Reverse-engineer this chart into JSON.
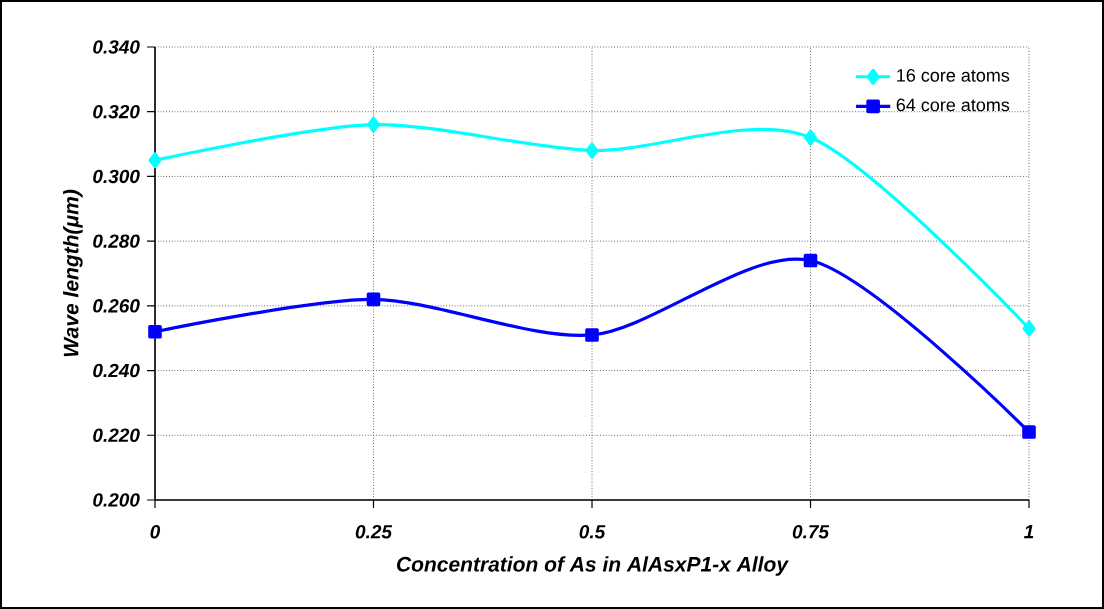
{
  "chart_data": {
    "type": "line",
    "xlabel": "Concentration of As in AlAsxP1-x Alloy",
    "ylabel": "Wave length(μm)",
    "x": [
      0,
      0.25,
      0.5,
      0.75,
      1
    ],
    "series": [
      {
        "name": "16 core atoms",
        "color": "#00ffff",
        "marker": "diamond",
        "values": [
          0.305,
          0.316,
          0.308,
          0.312,
          0.253
        ]
      },
      {
        "name": "64 core atoms",
        "color": "#0000ff",
        "marker": "square",
        "values": [
          0.252,
          0.262,
          0.251,
          0.274,
          0.221
        ]
      }
    ],
    "xlim": [
      0,
      1
    ],
    "xticks": [
      0,
      0.25,
      0.5,
      0.75,
      1
    ],
    "ylim": [
      0.2,
      0.34
    ],
    "yticks": [
      {
        "value": 0.2,
        "label": "0.200"
      },
      {
        "value": 0.22,
        "label": "0.220"
      },
      {
        "value": 0.24,
        "label": "0.240"
      },
      {
        "value": 0.26,
        "label": "0.260"
      },
      {
        "value": 0.28,
        "label": "0.280"
      },
      {
        "value": 0.3,
        "label": "0.300"
      },
      {
        "value": 0.32,
        "label": "0.320"
      },
      {
        "value": 0.34,
        "label": "0.340"
      }
    ],
    "grid": true,
    "legend": "top right",
    "line_style": "solid"
  }
}
